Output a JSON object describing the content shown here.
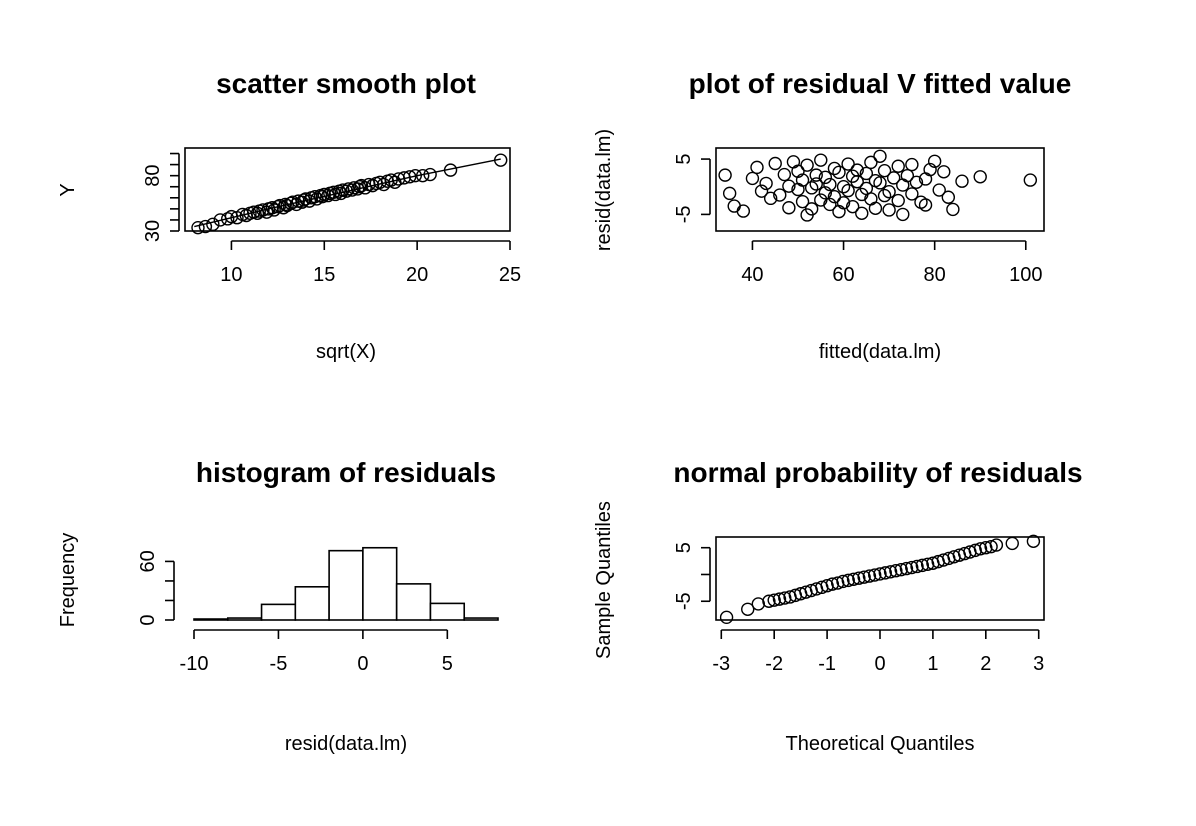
{
  "chart_data": [
    {
      "type": "scatter",
      "title": "scatter smooth plot",
      "xlabel": "sqrt(X)",
      "ylabel": "Y",
      "xlim": [
        7.5,
        25
      ],
      "ylim": [
        30,
        105
      ],
      "xticks": [
        10,
        15,
        20,
        25
      ],
      "yticks": [
        30,
        80
      ],
      "yminor": [
        40,
        50,
        60,
        70,
        90,
        100
      ],
      "x": [
        8.2,
        8.6,
        9.0,
        9.4,
        9.8,
        10.0,
        10.3,
        10.6,
        10.8,
        11.0,
        11.2,
        11.4,
        11.5,
        11.7,
        11.9,
        12.0,
        12.2,
        12.3,
        12.5,
        12.6,
        12.8,
        12.9,
        13.0,
        13.2,
        13.3,
        13.5,
        13.6,
        13.8,
        13.9,
        14.0,
        14.2,
        14.3,
        14.5,
        14.6,
        14.8,
        14.9,
        15.0,
        15.2,
        15.3,
        15.5,
        15.6,
        15.8,
        15.9,
        16.0,
        16.2,
        16.3,
        16.5,
        16.6,
        16.8,
        16.9,
        17.0,
        17.2,
        17.4,
        17.6,
        17.8,
        18.0,
        18.2,
        18.4,
        18.6,
        18.8,
        19.0,
        19.3,
        19.6,
        19.9,
        20.3,
        20.7,
        21.8,
        24.5
      ],
      "y": [
        33,
        34,
        36,
        40,
        41,
        43,
        42,
        45,
        44,
        46,
        47,
        46,
        48,
        49,
        47,
        50,
        51,
        49,
        52,
        53,
        51,
        54,
        53,
        55,
        56,
        54,
        57,
        56,
        58,
        59,
        57,
        60,
        61,
        59,
        62,
        61,
        63,
        62,
        64,
        65,
        63,
        66,
        64,
        67,
        66,
        68,
        67,
        69,
        68,
        70,
        71,
        69,
        72,
        71,
        73,
        74,
        72,
        75,
        76,
        74,
        77,
        78,
        79,
        80,
        80,
        81,
        85,
        94
      ],
      "smooth": {
        "x": [
          8.0,
          12.0,
          16.0,
          20.0,
          24.5
        ],
        "y": [
          34,
          50,
          65,
          80,
          95
        ]
      }
    },
    {
      "type": "scatter",
      "title": "plot of residual V fitted value",
      "xlabel": "fitted(data.lm)",
      "ylabel": "resid(data.lm)",
      "xlim": [
        32,
        104
      ],
      "ylim": [
        -8,
        7
      ],
      "xticks": [
        40,
        60,
        80,
        100
      ],
      "yticks": [
        -5,
        5
      ],
      "x": [
        34,
        35,
        36,
        38,
        40,
        41,
        42,
        43,
        44,
        45,
        46,
        47,
        48,
        48,
        49,
        50,
        50,
        51,
        51,
        52,
        52,
        53,
        53,
        54,
        54,
        55,
        55,
        56,
        56,
        57,
        57,
        58,
        58,
        59,
        59,
        60,
        60,
        61,
        61,
        62,
        62,
        63,
        63,
        64,
        64,
        65,
        65,
        66,
        66,
        67,
        67,
        68,
        68,
        69,
        69,
        70,
        70,
        71,
        72,
        72,
        73,
        73,
        74,
        75,
        75,
        76,
        77,
        78,
        78,
        79,
        80,
        81,
        82,
        83,
        84,
        86,
        90,
        101
      ],
      "y": [
        2.1,
        -1.2,
        -3.5,
        -4.4,
        1.5,
        3.5,
        -0.8,
        0.6,
        -2.1,
        4.2,
        -1.5,
        2.2,
        0.1,
        -3.8,
        4.5,
        -0.5,
        2.8,
        -2.7,
        1.2,
        -5.1,
        3.9,
        -0.2,
        -4.0,
        2.1,
        0.5,
        -2.4,
        4.8,
        -1.1,
        1.7,
        -3.2,
        0.4,
        3.3,
        -1.8,
        -4.5,
        2.6,
        0.0,
        -2.9,
        4.1,
        -0.7,
        1.9,
        -3.6,
        0.9,
        3.0,
        -1.4,
        -4.8,
        2.4,
        -0.3,
        4.4,
        -2.2,
        1.1,
        -3.9,
        0.7,
        5.5,
        -1.6,
        2.9,
        -0.9,
        -4.2,
        1.6,
        3.7,
        -2.5,
        0.3,
        -5.0,
        2.0,
        -1.3,
        4.0,
        0.8,
        -2.8,
        1.4,
        -3.3,
        3.1,
        4.6,
        -0.6,
        2.7,
        -1.9,
        -4.1,
        1.0,
        1.8,
        1.2
      ]
    },
    {
      "type": "bar",
      "title": "histogram of residuals",
      "xlabel": "resid(data.lm)",
      "ylabel": "Frequency",
      "xlim": [
        -10,
        8
      ],
      "ylim": [
        0,
        85
      ],
      "xticks": [
        -10,
        -5,
        0,
        5
      ],
      "yticks": [
        0,
        60
      ],
      "yminor": [
        20,
        40
      ],
      "bin_edges": [
        -10,
        -8,
        -6,
        -4,
        -2,
        0,
        2,
        4,
        6,
        8
      ],
      "values": [
        1,
        2,
        16,
        34,
        71,
        74,
        37,
        17,
        2
      ]
    },
    {
      "type": "scatter",
      "title": "normal probability of residuals",
      "xlabel": "Theoretical Quantiles",
      "ylabel": "Sample Quantiles",
      "xlim": [
        -3.1,
        3.1
      ],
      "ylim": [
        -8.5,
        7
      ],
      "xticks": [
        -3,
        -2,
        -1,
        0,
        1,
        2,
        3
      ],
      "yticks": [
        -5,
        5
      ],
      "yminor": [
        0
      ],
      "x": [
        -2.9,
        -2.5,
        -2.3,
        -2.1,
        -2.0,
        -1.9,
        -1.8,
        -1.7,
        -1.6,
        -1.5,
        -1.4,
        -1.3,
        -1.2,
        -1.1,
        -1.0,
        -0.9,
        -0.8,
        -0.7,
        -0.6,
        -0.5,
        -0.4,
        -0.3,
        -0.2,
        -0.1,
        0.0,
        0.1,
        0.2,
        0.3,
        0.4,
        0.5,
        0.6,
        0.7,
        0.8,
        0.9,
        1.0,
        1.1,
        1.2,
        1.3,
        1.4,
        1.5,
        1.6,
        1.7,
        1.8,
        1.9,
        2.0,
        2.1,
        2.2,
        2.5,
        2.9
      ],
      "y": [
        -8.0,
        -6.5,
        -5.5,
        -5.0,
        -4.8,
        -4.6,
        -4.4,
        -4.2,
        -3.9,
        -3.6,
        -3.3,
        -3.0,
        -2.7,
        -2.4,
        -2.1,
        -1.8,
        -1.6,
        -1.3,
        -1.1,
        -0.9,
        -0.7,
        -0.5,
        -0.3,
        -0.1,
        0.1,
        0.3,
        0.5,
        0.7,
        0.9,
        1.1,
        1.3,
        1.5,
        1.7,
        1.9,
        2.1,
        2.4,
        2.7,
        3.0,
        3.3,
        3.6,
        3.9,
        4.2,
        4.5,
        4.8,
        5.0,
        5.2,
        5.5,
        5.8,
        6.2
      ]
    }
  ]
}
